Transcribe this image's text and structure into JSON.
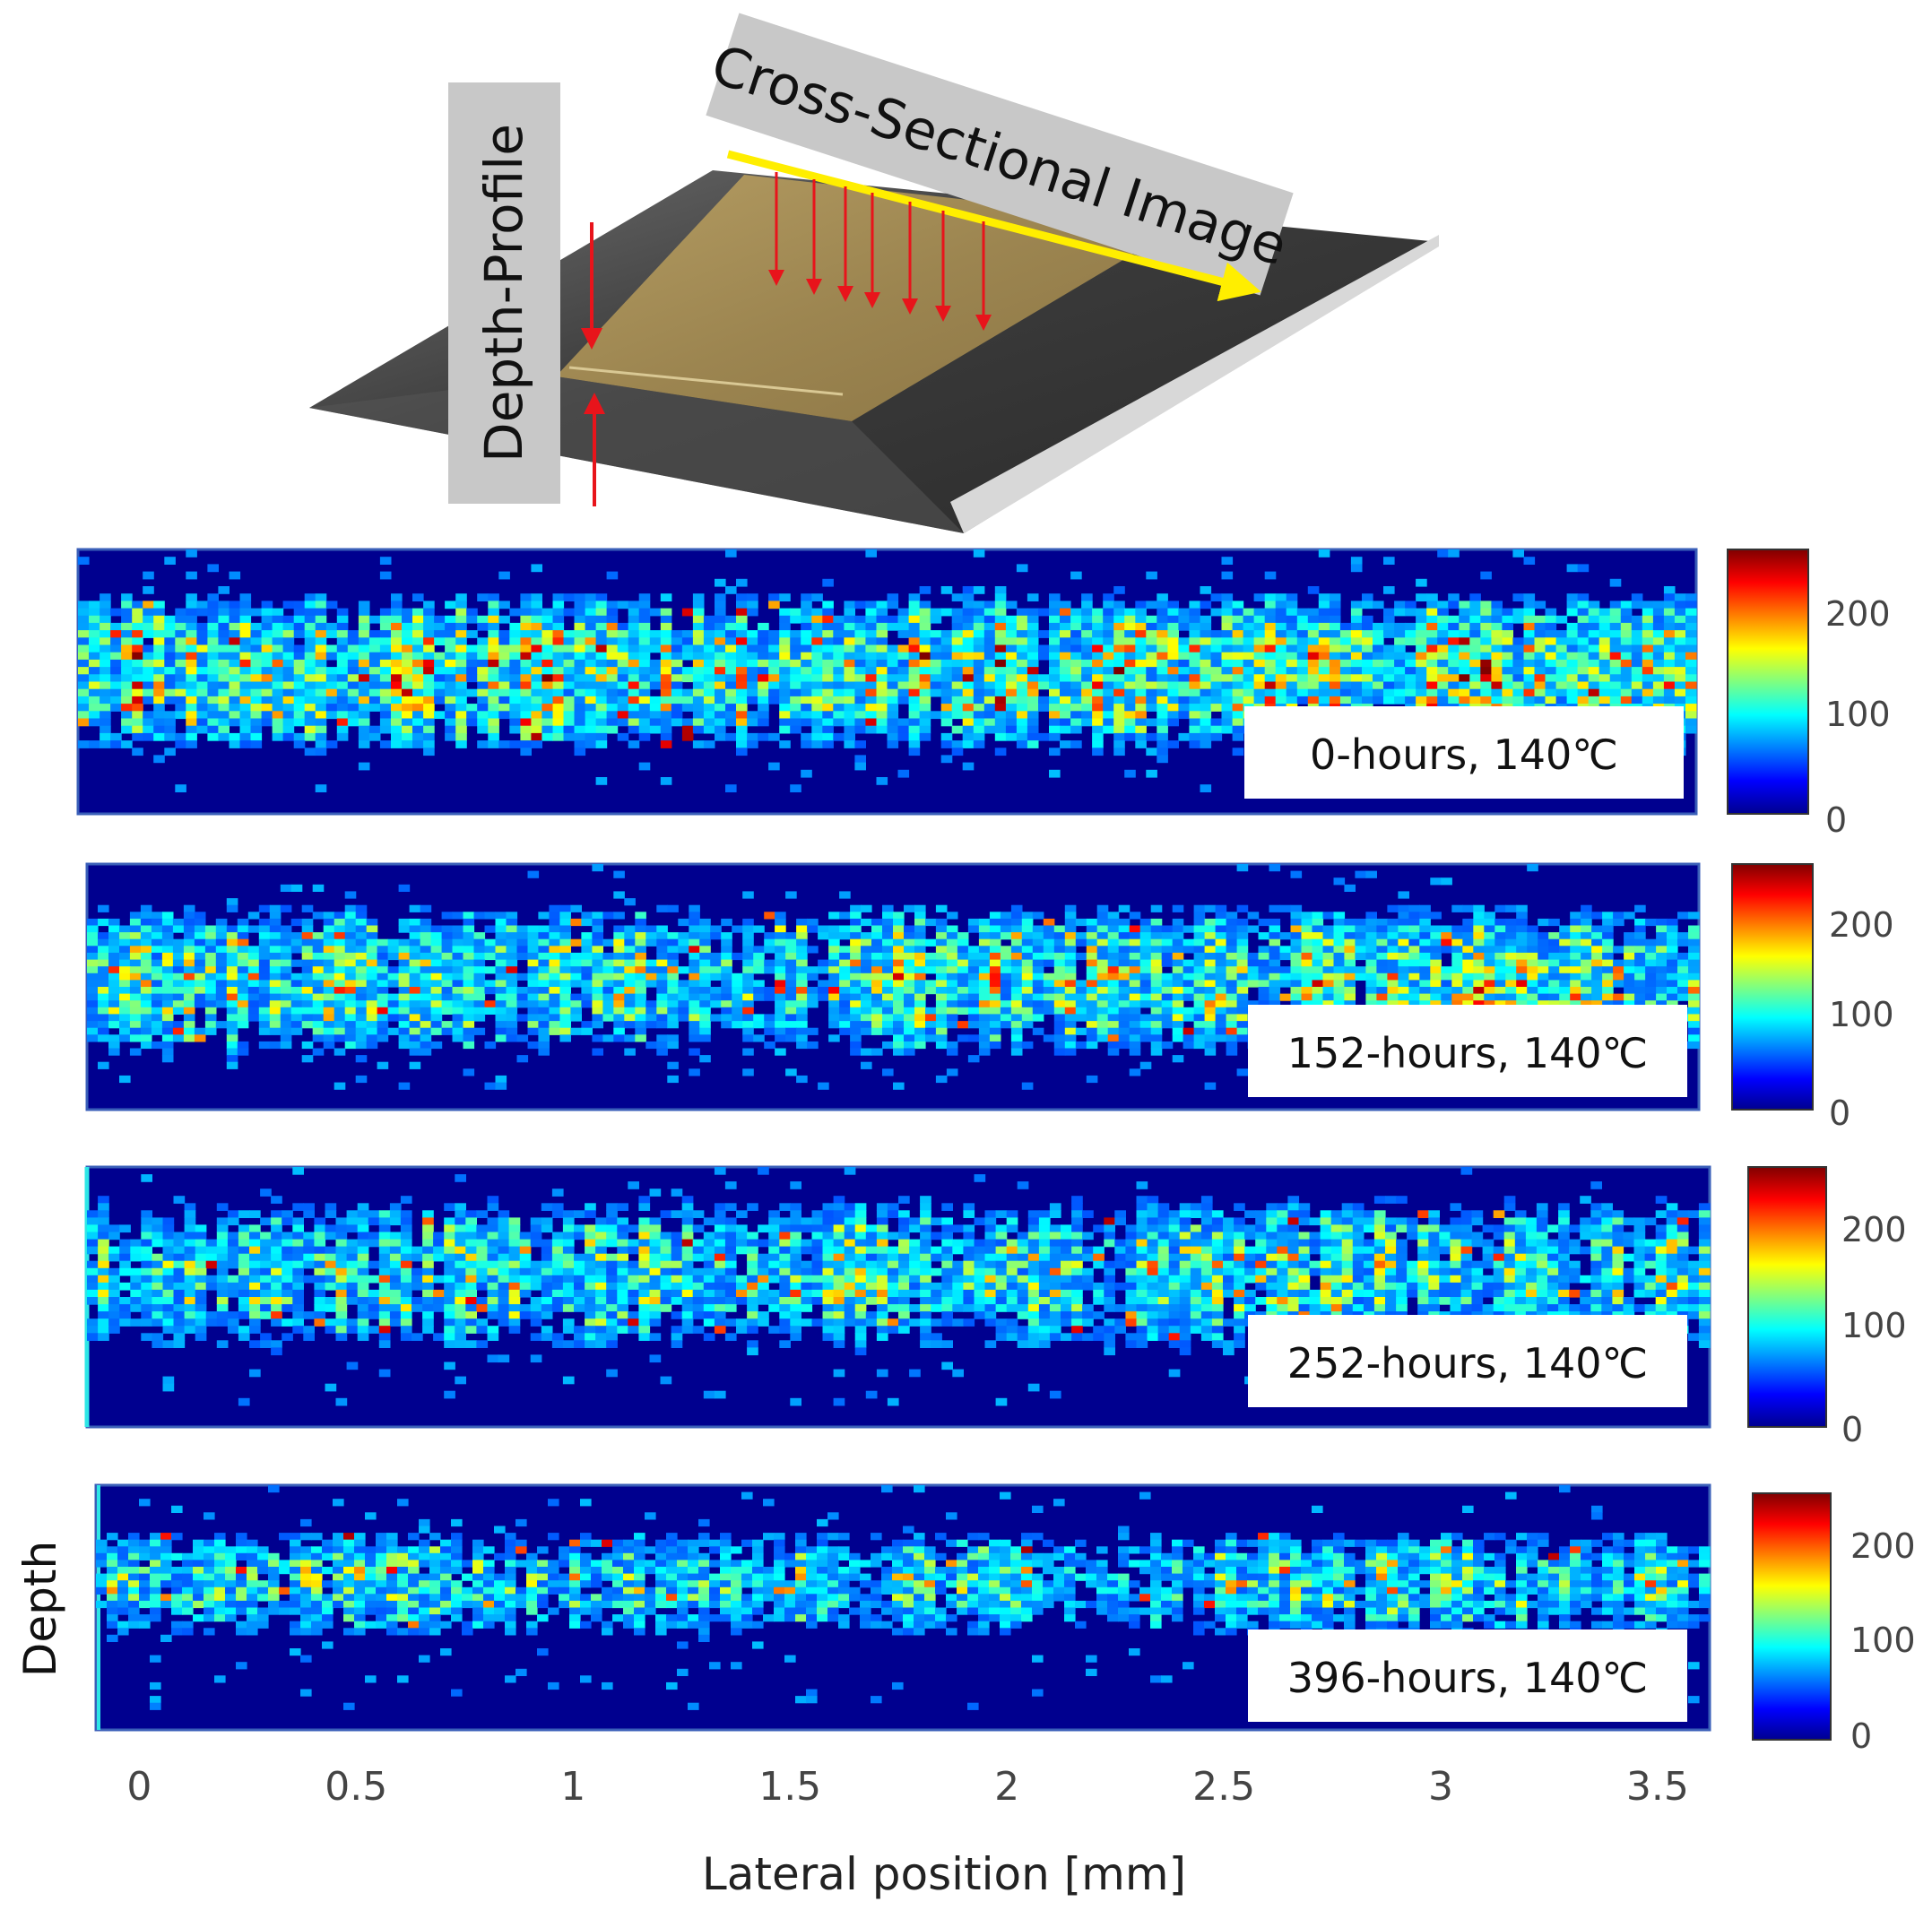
{
  "diagram": {
    "depth_profile_label": "Depth-Profile",
    "cross_section_label": "Cross-Sectional Image"
  },
  "colors": {
    "jet_low": "#00008f",
    "jet_high": "#800000",
    "arrow_red": "#e8141b",
    "arrow_yellow": "#ffee00",
    "label_box": "#c8c8c8"
  },
  "chart_data": {
    "type": "heatmap",
    "title": "",
    "xlabel": "Lateral position [mm]",
    "ylabel": "Depth",
    "xlim": [
      -0.1,
      3.62
    ],
    "x_ticks": [
      0,
      0.5,
      1,
      1.5,
      2,
      2.5,
      3,
      3.5
    ],
    "x_tick_labels": [
      "0",
      "0.5",
      "1",
      "1.5",
      "2",
      "2.5",
      "3",
      "3.5"
    ],
    "colorbar": {
      "range": [
        0,
        255
      ],
      "ticks": [
        0,
        100,
        200
      ],
      "tick_labels": [
        "0",
        "100",
        "200"
      ],
      "colormap": "jet"
    },
    "panels": [
      {
        "label": "0-hours, 140℃",
        "hours": 0,
        "temperature": "140℃",
        "seed": 11,
        "intensity": 1.0,
        "band": [
          0.12,
          0.78
        ]
      },
      {
        "label": "152-hours, 140℃",
        "hours": 152,
        "temperature": "140℃",
        "seed": 23,
        "intensity": 0.85,
        "band": [
          0.12,
          0.8
        ]
      },
      {
        "label": "252-hours, 140℃",
        "hours": 252,
        "temperature": "140℃",
        "seed": 37,
        "intensity": 0.75,
        "band": [
          0.08,
          0.72
        ]
      },
      {
        "label": "396-hours, 140℃",
        "hours": 396,
        "temperature": "140℃",
        "seed": 51,
        "intensity": 0.7,
        "band": [
          0.15,
          0.62
        ]
      }
    ]
  }
}
